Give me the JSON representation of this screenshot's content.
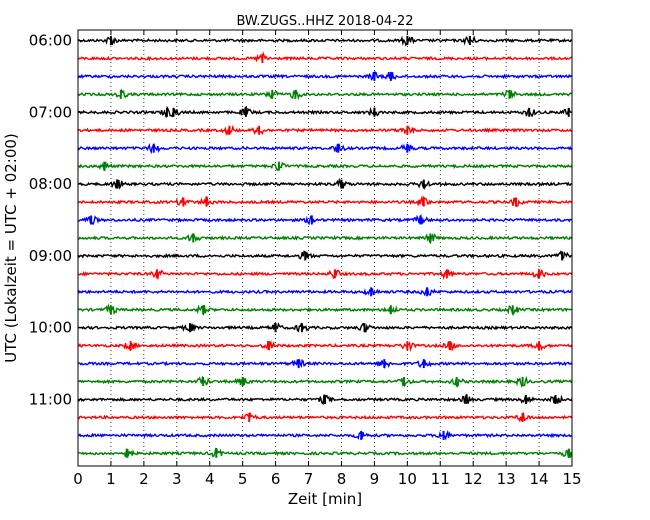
{
  "chart_data": {
    "type": "line",
    "title": "BW.ZUGS..HHZ 2018-04-22",
    "xlabel": "Zeit  [min]",
    "ylabel": "UTC (Lokalzeit = UTC + 02:00)",
    "xlim": [
      0,
      15
    ],
    "x_ticks": [
      "0",
      "1",
      "2",
      "3",
      "4",
      "5",
      "6",
      "7",
      "8",
      "9",
      "10",
      "11",
      "12",
      "13",
      "14",
      "15"
    ],
    "y_ticks": [
      "06:00",
      "07:00",
      "08:00",
      "09:00",
      "10:00",
      "11:00"
    ],
    "grid": "vertical dotted",
    "colors": [
      "#000000",
      "#ff0000",
      "#0000ff",
      "#008000"
    ],
    "traces": [
      {
        "events": [
          1.0,
          10.0,
          11.9
        ]
      },
      {
        "events": [
          5.6
        ]
      },
      {
        "events": [
          9.0,
          9.5
        ]
      },
      {
        "events": [
          1.3,
          5.9,
          6.6,
          13.1
        ]
      },
      {
        "events": [
          2.7,
          2.9,
          5.1,
          9.0,
          13.7,
          14.9
        ]
      },
      {
        "events": [
          4.6,
          5.5,
          10.0
        ]
      },
      {
        "events": [
          2.3,
          7.9,
          10.0
        ]
      },
      {
        "events": [
          0.8,
          6.1
        ]
      },
      {
        "events": [
          1.2,
          8.0,
          10.5
        ]
      },
      {
        "events": [
          3.2,
          3.9,
          10.5,
          13.3
        ]
      },
      {
        "events": [
          0.4,
          7.1,
          10.4
        ]
      },
      {
        "events": [
          3.5,
          10.7
        ]
      },
      {
        "events": [
          6.9,
          14.7
        ]
      },
      {
        "events": [
          2.4,
          7.8,
          11.2,
          14.0
        ]
      },
      {
        "events": [
          8.9,
          10.6
        ]
      },
      {
        "events": [
          1.0,
          3.8,
          9.5,
          13.2
        ]
      },
      {
        "events": [
          3.4,
          6.0,
          6.8,
          8.7
        ]
      },
      {
        "events": [
          1.6,
          5.8,
          10.0,
          11.3,
          14.0
        ]
      },
      {
        "events": [
          6.7,
          9.3,
          10.5
        ]
      },
      {
        "events": [
          3.8,
          5.0,
          9.9,
          11.5,
          13.5
        ]
      },
      {
        "events": [
          7.5,
          11.8,
          13.6,
          14.5
        ]
      },
      {
        "events": [
          5.2,
          13.5
        ]
      },
      {
        "events": [
          8.6,
          11.1
        ]
      },
      {
        "events": [
          1.5,
          4.2,
          14.9
        ]
      }
    ]
  }
}
